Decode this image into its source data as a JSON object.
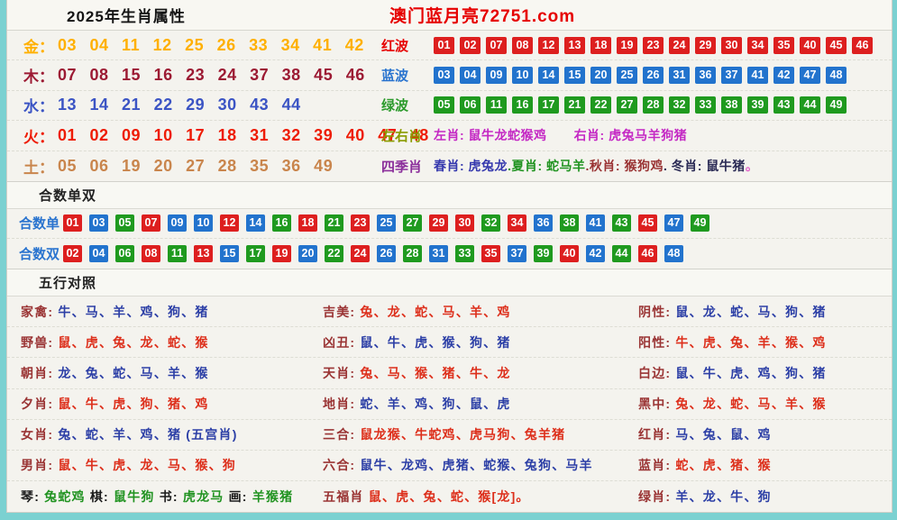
{
  "header": {
    "title": "2025年生肖属性",
    "site": "澳门蓝月亮72751.com"
  },
  "palette": {
    "text": {
      "gold": "#ffb000",
      "maroon": "#9c1a33",
      "blue": "#3b54c4",
      "red": "#ee1c04",
      "tan": "#c9854c"
    },
    "badge": {
      "r": "#dd1f1f",
      "b": "#2273cd",
      "g": "#1f9a1f"
    },
    "wuxing": {
      "lab": "#9a3434",
      "blu": "#2c3fa6",
      "red": "#dd2f1b",
      "grn": "#219321",
      "blk": "#1a1a1a"
    },
    "accent_red": "#e60000",
    "page_border": "#7bd1d1"
  },
  "element_rows": [
    {
      "label": "金：",
      "numbers": "03 04 11 12 25 26 33 34 41 42",
      "color": "gold"
    },
    {
      "label": "木：",
      "numbers": "07 08 15 16 23 24 37 38 45 46",
      "color": "maroon"
    },
    {
      "label": "水：",
      "numbers": "13 14 21 22 29 30 43 44",
      "color": "blue"
    },
    {
      "label": "火：",
      "numbers": "01 02 09 10 17 18 31 32 39 40 47 48",
      "color": "red"
    },
    {
      "label": "土：",
      "numbers": "05 06 19 20 27 28 35 36 49",
      "color": "tan"
    }
  ],
  "right_rows": [
    {
      "type": "wave",
      "label": "红波",
      "labelColor": "#e60000",
      "badgeColor": "#dd1f1f",
      "numbers": [
        "01",
        "02",
        "07",
        "08",
        "12",
        "13",
        "18",
        "19",
        "23",
        "24",
        "29",
        "30",
        "34",
        "35",
        "40",
        "45",
        "46"
      ]
    },
    {
      "type": "wave",
      "label": "蓝波",
      "labelColor": "#2a74cf",
      "badgeColor": "#2273cd",
      "numbers": [
        "03",
        "04",
        "09",
        "10",
        "14",
        "15",
        "20",
        "25",
        "26",
        "31",
        "36",
        "37",
        "41",
        "42",
        "47",
        "48"
      ]
    },
    {
      "type": "wave",
      "label": "绿波",
      "labelColor": "#2b9a2b",
      "badgeColor": "#1f9a1f",
      "numbers": [
        "05",
        "06",
        "11",
        "16",
        "17",
        "21",
        "22",
        "27",
        "28",
        "32",
        "33",
        "38",
        "39",
        "43",
        "44",
        "49"
      ]
    },
    {
      "type": "text",
      "label": "左右肖",
      "labelColor": "#8a9b00",
      "segments": [
        {
          "text": "左肖: 鼠牛龙蛇猴鸡",
          "color": "#c428c4",
          "gap": 30
        },
        {
          "text": "右肖: 虎兔马羊狗猪",
          "color": "#c428c4"
        }
      ]
    },
    {
      "type": "text",
      "label": "四季肖",
      "labelColor": "#8b2f9b",
      "segments": [
        {
          "text": "春肖: 虎兔龙",
          "color": "#3538ad"
        },
        {
          "text": ".夏肖: 蛇马羊",
          "color": "#209320"
        },
        {
          "text": ".秋肖: 猴狗鸡",
          "color": "#9a3434"
        },
        {
          "text": ". 冬肖: 鼠牛猪",
          "color": "#2b2b55"
        },
        {
          "text": "。",
          "color": "#e264c9"
        }
      ]
    }
  ],
  "hesu": {
    "header": "合数单双",
    "label_color": "#2a74cf",
    "rows": [
      {
        "label": "合数单",
        "badges": [
          [
            "01",
            "r"
          ],
          [
            "03",
            "b"
          ],
          [
            "05",
            "g"
          ],
          [
            "07",
            "r"
          ],
          [
            "09",
            "b"
          ],
          [
            "10",
            "b"
          ],
          [
            "12",
            "r"
          ],
          [
            "14",
            "b"
          ],
          [
            "16",
            "g"
          ],
          [
            "18",
            "r"
          ],
          [
            "21",
            "g"
          ],
          [
            "23",
            "r"
          ],
          [
            "25",
            "b"
          ],
          [
            "27",
            "g"
          ],
          [
            "29",
            "r"
          ],
          [
            "30",
            "r"
          ],
          [
            "32",
            "g"
          ],
          [
            "34",
            "r"
          ],
          [
            "36",
            "b"
          ],
          [
            "38",
            "g"
          ],
          [
            "41",
            "b"
          ],
          [
            "43",
            "g"
          ],
          [
            "45",
            "r"
          ],
          [
            "47",
            "b"
          ],
          [
            "49",
            "g"
          ]
        ]
      },
      {
        "label": "合数双",
        "badges": [
          [
            "02",
            "r"
          ],
          [
            "04",
            "b"
          ],
          [
            "06",
            "g"
          ],
          [
            "08",
            "r"
          ],
          [
            "11",
            "g"
          ],
          [
            "13",
            "r"
          ],
          [
            "15",
            "b"
          ],
          [
            "17",
            "g"
          ],
          [
            "19",
            "r"
          ],
          [
            "20",
            "b"
          ],
          [
            "22",
            "g"
          ],
          [
            "24",
            "r"
          ],
          [
            "26",
            "b"
          ],
          [
            "28",
            "g"
          ],
          [
            "31",
            "b"
          ],
          [
            "33",
            "g"
          ],
          [
            "35",
            "r"
          ],
          [
            "37",
            "b"
          ],
          [
            "39",
            "g"
          ],
          [
            "40",
            "r"
          ],
          [
            "42",
            "b"
          ],
          [
            "44",
            "g"
          ],
          [
            "46",
            "r"
          ],
          [
            "48",
            "b"
          ]
        ]
      }
    ]
  },
  "wuxing": {
    "header": "五行对照",
    "columns": [
      {
        "rows": [
          {
            "segments": [
              [
                "家禽: ",
                "lab"
              ],
              [
                "牛、马、羊、鸡、狗、猪",
                "blu"
              ]
            ]
          },
          {
            "segments": [
              [
                "野兽: ",
                "lab"
              ],
              [
                "鼠、虎、兔、龙、蛇、猴",
                "red"
              ]
            ]
          },
          {
            "segments": [
              [
                "朝肖: ",
                "lab"
              ],
              [
                "龙、兔、蛇、马、羊、猴",
                "blu"
              ]
            ]
          },
          {
            "segments": [
              [
                "夕肖: ",
                "lab"
              ],
              [
                "鼠、牛、虎、狗、猪、鸡",
                "red"
              ]
            ]
          },
          {
            "segments": [
              [
                "女肖: ",
                "lab"
              ],
              [
                "兔、蛇、羊、鸡、猪 (五宫肖)",
                "blu"
              ]
            ]
          },
          {
            "segments": [
              [
                "男肖: ",
                "lab"
              ],
              [
                "鼠、牛、虎、龙、马、猴、狗",
                "red"
              ]
            ]
          },
          {
            "segments": [
              [
                "琴: ",
                "blk"
              ],
              [
                "兔蛇鸡 ",
                "grn"
              ],
              [
                "棋: ",
                "blk"
              ],
              [
                "鼠牛狗 ",
                "grn"
              ],
              [
                "书: ",
                "blk"
              ],
              [
                "虎龙马 ",
                "grn"
              ],
              [
                "画: ",
                "blk"
              ],
              [
                "羊猴猪",
                "grn"
              ]
            ]
          }
        ]
      },
      {
        "rows": [
          {
            "segments": [
              [
                "吉美: ",
                "lab"
              ],
              [
                "兔、龙、蛇、马、羊、鸡",
                "red"
              ]
            ]
          },
          {
            "segments": [
              [
                "凶丑: ",
                "lab"
              ],
              [
                "鼠、牛、虎、猴、狗、猪",
                "blu"
              ]
            ]
          },
          {
            "segments": [
              [
                "天肖: ",
                "lab"
              ],
              [
                "兔、马、猴、猪、牛、龙",
                "red"
              ]
            ]
          },
          {
            "segments": [
              [
                "地肖: ",
                "lab"
              ],
              [
                "蛇、羊、鸡、狗、鼠、虎",
                "blu"
              ]
            ]
          },
          {
            "segments": [
              [
                "三合: ",
                "lab"
              ],
              [
                "鼠龙猴、牛蛇鸡、虎马狗、兔羊猪",
                "red"
              ]
            ]
          },
          {
            "segments": [
              [
                "六合: ",
                "lab"
              ],
              [
                "鼠牛、龙鸡、虎猪、蛇猴、兔狗、马羊",
                "blu"
              ]
            ]
          },
          {
            "segments": [
              [
                "五福肖 ",
                "lab"
              ],
              [
                "鼠、虎、兔、蛇、猴[龙]。",
                "red"
              ]
            ]
          }
        ]
      },
      {
        "rows": [
          {
            "segments": [
              [
                "阴性: ",
                "lab"
              ],
              [
                "鼠、龙、蛇、马、狗、猪",
                "blu"
              ]
            ]
          },
          {
            "segments": [
              [
                "阳性: ",
                "lab"
              ],
              [
                "牛、虎、兔、羊、猴、鸡",
                "red"
              ]
            ]
          },
          {
            "segments": [
              [
                "白边: ",
                "lab"
              ],
              [
                "鼠、牛、虎、鸡、狗、猪",
                "blu"
              ]
            ]
          },
          {
            "segments": [
              [
                "黑中: ",
                "lab"
              ],
              [
                "兔、龙、蛇、马、羊、猴",
                "red"
              ]
            ]
          },
          {
            "segments": [
              [
                "红肖: ",
                "lab"
              ],
              [
                "马、兔、鼠、鸡",
                "blu"
              ]
            ]
          },
          {
            "segments": [
              [
                "蓝肖: ",
                "lab"
              ],
              [
                "蛇、虎、猪、猴",
                "red"
              ]
            ]
          },
          {
            "segments": [
              [
                "绿肖: ",
                "lab"
              ],
              [
                "羊、龙、牛、狗",
                "blu"
              ]
            ]
          }
        ]
      }
    ]
  }
}
